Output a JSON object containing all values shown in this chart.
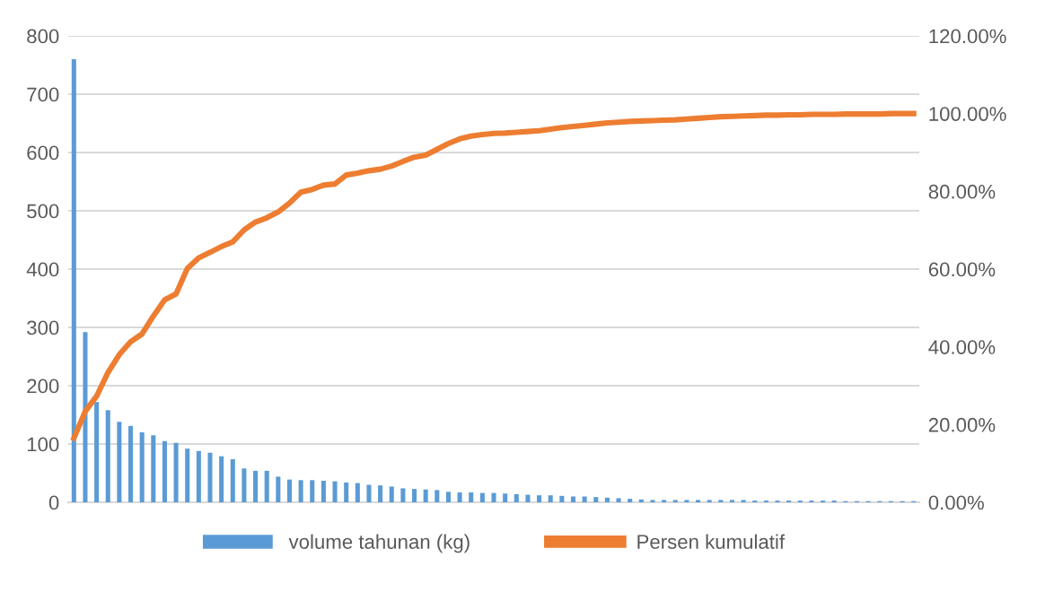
{
  "chart_data": {
    "type": "bar",
    "categories": [
      null,
      null,
      null,
      null,
      null,
      null,
      null,
      null,
      null,
      null,
      null,
      null,
      null,
      null,
      null,
      null,
      null,
      null,
      null,
      null,
      null,
      null,
      null,
      null,
      null,
      null,
      null,
      null,
      null,
      null,
      null,
      null,
      null,
      null,
      null,
      null,
      null,
      null,
      null,
      null,
      null,
      null,
      null,
      null,
      null,
      null,
      null,
      null,
      null,
      null,
      null,
      null,
      null,
      null,
      null,
      null,
      null,
      null,
      null,
      null,
      null,
      null,
      null,
      null,
      null,
      null,
      null,
      null,
      null,
      null,
      null,
      null,
      null,
      null,
      null
    ],
    "series": [
      {
        "name": "volume tahunan (kg)",
        "color": "#5b9bd5",
        "values": [
          760,
          292,
          172,
          158,
          138,
          131,
          120,
          115,
          105,
          102,
          92,
          88,
          85,
          79,
          74,
          58,
          54,
          54,
          44,
          39,
          38,
          38,
          37,
          36,
          34,
          33,
          30,
          29,
          27,
          24,
          23,
          22,
          21,
          18,
          17,
          17,
          16,
          16,
          15,
          14,
          13,
          12,
          12,
          11,
          10,
          10,
          9,
          8,
          7,
          6,
          5,
          4,
          4,
          4,
          4,
          4,
          4,
          4,
          4,
          4,
          3,
          3,
          3,
          3,
          3,
          3,
          3,
          3,
          2,
          2,
          2,
          2,
          2,
          2,
          2
        ]
      },
      {
        "name": "Persen kumulatif",
        "type": "line",
        "axis": "y2",
        "color": "#ed7d31",
        "values": [
          16.5,
          23.4,
          27.3,
          33.4,
          38.0,
          41.3,
          43.3,
          47.9,
          52.1,
          53.6,
          60.2,
          62.9,
          64.3,
          65.8,
          67.0,
          70.1,
          72.1,
          73.2,
          74.7,
          77.0,
          79.8,
          80.5,
          81.6,
          81.9,
          84.2,
          84.7,
          85.3,
          85.7,
          86.5,
          87.7,
          88.8,
          89.3,
          90.8,
          92.3,
          93.5,
          94.2,
          94.6,
          94.9,
          95.0,
          95.2,
          95.4,
          95.6,
          96.0,
          96.4,
          96.7,
          97.0,
          97.3,
          97.6,
          97.8,
          98.0,
          98.1,
          98.2,
          98.3,
          98.4,
          98.6,
          98.8,
          99.0,
          99.2,
          99.3,
          99.4,
          99.5,
          99.6,
          99.6,
          99.7,
          99.7,
          99.8,
          99.8,
          99.8,
          99.9,
          99.9,
          99.9,
          99.9,
          100.0,
          100.0,
          100.0
        ]
      }
    ],
    "ylim": [
      0,
      800
    ],
    "yticks": [
      0,
      100,
      200,
      300,
      400,
      500,
      600,
      700,
      800
    ],
    "y2lim": [
      0,
      120
    ],
    "y2ticks": [
      {
        "value": 0,
        "label": "0.00%"
      },
      {
        "value": 20,
        "label": "20.00%"
      },
      {
        "value": 40,
        "label": "40.00%"
      },
      {
        "value": 60,
        "label": "60.00%"
      },
      {
        "value": 80,
        "label": "80.00%"
      },
      {
        "value": 100,
        "label": "100.00%"
      },
      {
        "value": 120,
        "label": "120.00%"
      }
    ],
    "grid": "y",
    "legend": "bottom",
    "marker": "none",
    "line_style": "solid"
  }
}
